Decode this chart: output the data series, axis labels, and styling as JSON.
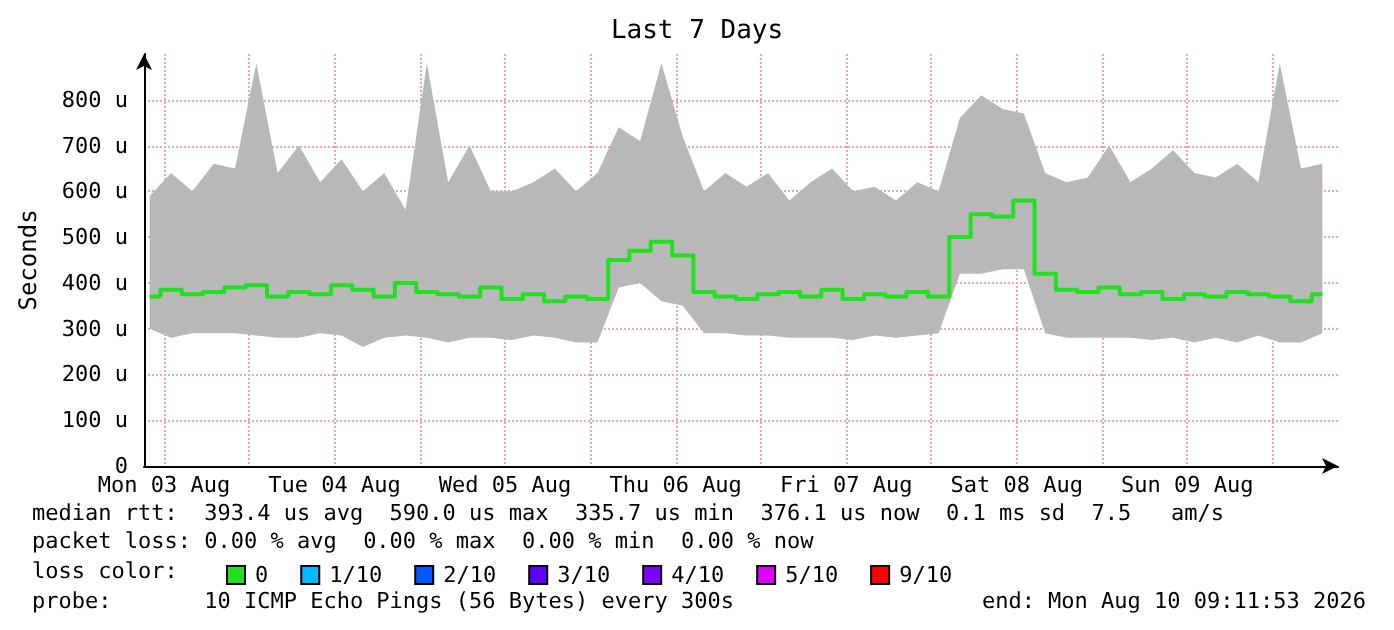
{
  "chart_data": {
    "type": "step",
    "title": "Last 7 Days",
    "ylabel": "Seconds",
    "legend_title": "loss color:",
    "legend": "bottom left",
    "grid": true,
    "marker": "none",
    "annotations": [
      "median rtt:  393.4 us avg  590.0 us max  335.7 us min  376.1 us now  0.1 ms sd  7.5   am/s",
      "packet loss: 0.00 % avg  0.00 % max  0.00 % min  0.00 % now",
      "probe:       10 ICMP Echo Pings (56 Bytes) every 300s",
      "end: Mon Aug 10 09:11:53 2026"
    ],
    "x": [
      "2026-08-03T10:00",
      "2026-08-03T13:00",
      "2026-08-03T16:00",
      "2026-08-03T19:00",
      "2026-08-03T22:00",
      "2026-08-04T01:00",
      "2026-08-04T04:00",
      "2026-08-04T07:00",
      "2026-08-04T10:00",
      "2026-08-04T13:00",
      "2026-08-04T16:00",
      "2026-08-04T19:00",
      "2026-08-04T22:00",
      "2026-08-05T01:00",
      "2026-08-05T04:00",
      "2026-08-05T07:00",
      "2026-08-05T10:00",
      "2026-08-05T13:00",
      "2026-08-05T16:00",
      "2026-08-05T19:00",
      "2026-08-05T22:00",
      "2026-08-06T01:00",
      "2026-08-06T04:00",
      "2026-08-06T07:00",
      "2026-08-06T10:00",
      "2026-08-06T13:00",
      "2026-08-06T16:00",
      "2026-08-06T19:00",
      "2026-08-06T22:00",
      "2026-08-07T01:00",
      "2026-08-07T04:00",
      "2026-08-07T07:00",
      "2026-08-07T10:00",
      "2026-08-07T13:00",
      "2026-08-07T16:00",
      "2026-08-07T19:00",
      "2026-08-07T22:00",
      "2026-08-08T01:00",
      "2026-08-08T04:00",
      "2026-08-08T07:00",
      "2026-08-08T10:00",
      "2026-08-08T13:00",
      "2026-08-08T16:00",
      "2026-08-08T19:00",
      "2026-08-08T22:00",
      "2026-08-09T01:00",
      "2026-08-09T04:00",
      "2026-08-09T07:00",
      "2026-08-09T10:00",
      "2026-08-09T13:00",
      "2026-08-09T16:00",
      "2026-08-09T19:00",
      "2026-08-09T22:00",
      "2026-08-10T01:00",
      "2026-08-10T04:00",
      "2026-08-10T07:00"
    ],
    "series": [
      {
        "name": "0",
        "color": "#20e020",
        "values": [
          370,
          385,
          375,
          380,
          390,
          395,
          370,
          380,
          375,
          395,
          385,
          370,
          400,
          380,
          375,
          370,
          390,
          365,
          375,
          360,
          370,
          365,
          450,
          470,
          490,
          460,
          380,
          370,
          365,
          375,
          380,
          370,
          385,
          365,
          375,
          370,
          380,
          370,
          500,
          550,
          545,
          580,
          420,
          385,
          380,
          390,
          375,
          380,
          365,
          375,
          370,
          380,
          375,
          370,
          360,
          375
        ],
        "upper": [
          590,
          640,
          600,
          660,
          650,
          880,
          640,
          700,
          620,
          670,
          600,
          640,
          560,
          880,
          620,
          700,
          600,
          600,
          620,
          650,
          600,
          640,
          740,
          710,
          880,
          720,
          600,
          640,
          610,
          640,
          580,
          620,
          650,
          600,
          610,
          580,
          620,
          600,
          760,
          810,
          780,
          770,
          640,
          620,
          630,
          700,
          620,
          650,
          690,
          640,
          630,
          660,
          620,
          880,
          650,
          660
        ],
        "lower": [
          300,
          280,
          290,
          290,
          290,
          285,
          280,
          280,
          290,
          285,
          260,
          280,
          285,
          280,
          270,
          280,
          280,
          275,
          285,
          280,
          270,
          270,
          390,
          400,
          360,
          350,
          290,
          290,
          285,
          285,
          280,
          280,
          280,
          275,
          285,
          280,
          285,
          290,
          420,
          420,
          430,
          430,
          290,
          280,
          280,
          280,
          280,
          275,
          280,
          270,
          280,
          270,
          285,
          270,
          270,
          290
        ]
      },
      {
        "name": "1/10",
        "color": "#00b8ff",
        "values": [
          null,
          null,
          null,
          null,
          null,
          null,
          null,
          null,
          null,
          null,
          null,
          null,
          null,
          null,
          null,
          null,
          null,
          null,
          null,
          null,
          null,
          null,
          null,
          null,
          null,
          null,
          null,
          null,
          null,
          null,
          null,
          null,
          null,
          null,
          null,
          null,
          null,
          null,
          null,
          null,
          null,
          null,
          null,
          null,
          null,
          null,
          null,
          null,
          null,
          null,
          null,
          null,
          null,
          null,
          null,
          null
        ]
      },
      {
        "name": "2/10",
        "color": "#0059ff",
        "values": [
          null,
          null,
          null,
          null,
          null,
          null,
          null,
          null,
          null,
          null,
          null,
          null,
          null,
          null,
          null,
          null,
          null,
          null,
          null,
          null,
          null,
          null,
          null,
          null,
          null,
          null,
          null,
          null,
          null,
          null,
          null,
          null,
          null,
          null,
          null,
          null,
          null,
          null,
          null,
          null,
          null,
          null,
          null,
          null,
          null,
          null,
          null,
          null,
          null,
          null,
          null,
          null,
          null,
          null,
          null,
          null
        ]
      },
      {
        "name": "3/10",
        "color": "#5e00ff",
        "values": [
          null,
          null,
          null,
          null,
          null,
          null,
          null,
          null,
          null,
          null,
          null,
          null,
          null,
          null,
          null,
          null,
          null,
          null,
          null,
          null,
          null,
          null,
          null,
          null,
          null,
          null,
          null,
          null,
          null,
          null,
          null,
          null,
          null,
          null,
          null,
          null,
          null,
          null,
          null,
          null,
          null,
          null,
          null,
          null,
          null,
          null,
          null,
          null,
          null,
          null,
          null,
          null,
          null,
          null,
          null,
          null
        ]
      },
      {
        "name": "4/10",
        "color": "#7e00ff",
        "values": [
          null,
          null,
          null,
          null,
          null,
          null,
          null,
          null,
          null,
          null,
          null,
          null,
          null,
          null,
          null,
          null,
          null,
          null,
          null,
          null,
          null,
          null,
          null,
          null,
          null,
          null,
          null,
          null,
          null,
          null,
          null,
          null,
          null,
          null,
          null,
          null,
          null,
          null,
          null,
          null,
          null,
          null,
          null,
          null,
          null,
          null,
          null,
          null,
          null,
          null,
          null,
          null,
          null,
          null,
          null,
          null
        ]
      },
      {
        "name": "5/10",
        "color": "#dd00ff",
        "values": [
          null,
          null,
          null,
          null,
          null,
          null,
          null,
          null,
          null,
          null,
          null,
          null,
          null,
          null,
          null,
          null,
          null,
          null,
          null,
          null,
          null,
          null,
          null,
          null,
          null,
          null,
          null,
          null,
          null,
          null,
          null,
          null,
          null,
          null,
          null,
          null,
          null,
          null,
          null,
          null,
          null,
          null,
          null,
          null,
          null,
          null,
          null,
          null,
          null,
          null,
          null,
          null,
          null,
          null,
          null,
          null
        ]
      },
      {
        "name": "9/10",
        "color": "#ff0000",
        "values": [
          null,
          null,
          null,
          null,
          null,
          null,
          null,
          null,
          null,
          null,
          null,
          null,
          null,
          null,
          null,
          null,
          null,
          null,
          null,
          null,
          null,
          null,
          null,
          null,
          null,
          null,
          null,
          null,
          null,
          null,
          null,
          null,
          null,
          null,
          null,
          null,
          null,
          null,
          null,
          null,
          null,
          null,
          null,
          null,
          null,
          null,
          null,
          null,
          null,
          null,
          null,
          null,
          null,
          null,
          null,
          null
        ]
      }
    ],
    "xlim": [
      "2026-08-03T09:12",
      "2026-08-10T09:12"
    ],
    "xticks": [
      {
        "value": "2026-08-03T12:00",
        "label": "Mon 03 Aug"
      },
      {
        "value": "2026-08-04T00:00",
        "label": null
      },
      {
        "value": "2026-08-04T12:00",
        "label": "Tue 04 Aug"
      },
      {
        "value": "2026-08-05T00:00",
        "label": null
      },
      {
        "value": "2026-08-05T12:00",
        "label": "Wed 05 Aug"
      },
      {
        "value": "2026-08-06T00:00",
        "label": null
      },
      {
        "value": "2026-08-06T12:00",
        "label": "Thu 06 Aug"
      },
      {
        "value": "2026-08-07T00:00",
        "label": null
      },
      {
        "value": "2026-08-07T12:00",
        "label": "Fri 07 Aug"
      },
      {
        "value": "2026-08-08T00:00",
        "label": null
      },
      {
        "value": "2026-08-08T12:00",
        "label": "Sat 08 Aug"
      },
      {
        "value": "2026-08-09T00:00",
        "label": null
      },
      {
        "value": "2026-08-09T12:00",
        "label": "Sun 09 Aug"
      },
      {
        "value": "2026-08-10T00:00",
        "label": null
      }
    ],
    "ylim": [
      0,
      900
    ],
    "yticks": [
      0,
      {
        "value": 100,
        "label": "100 u"
      },
      {
        "value": 200,
        "label": "200 u"
      },
      {
        "value": 300,
        "label": "300 u"
      },
      {
        "value": 400,
        "label": "400 u"
      },
      {
        "value": 500,
        "label": "500 u"
      },
      {
        "value": 600,
        "label": "600 u"
      },
      {
        "value": 700,
        "label": "700 u"
      },
      {
        "value": 800,
        "label": "800 u"
      }
    ]
  }
}
